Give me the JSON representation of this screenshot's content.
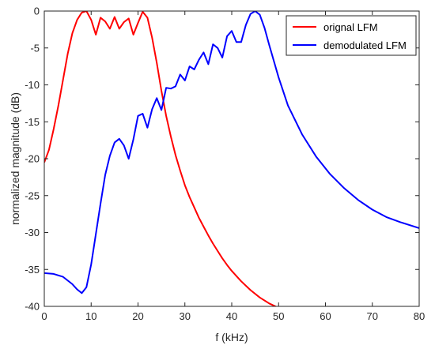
{
  "chart_data": {
    "type": "line",
    "title": "",
    "xlabel": "f (kHz)",
    "ylabel": "normalized magnitude (dB)",
    "xlim": [
      0,
      80
    ],
    "ylim": [
      -40,
      0
    ],
    "xticks": [
      "0",
      "10",
      "20",
      "30",
      "40",
      "50",
      "60",
      "70",
      "80"
    ],
    "yticks": [
      "0",
      "-5",
      "-10",
      "-15",
      "-20",
      "-25",
      "-30",
      "-35",
      "-40"
    ],
    "grid": false,
    "legend_position": "top-right",
    "series": [
      {
        "name": "orignal LFM",
        "color": "#ff0000",
        "x": [
          0,
          1,
          2,
          3,
          4,
          5,
          6,
          7,
          8,
          9,
          10,
          11,
          12,
          13,
          14,
          15,
          16,
          17,
          18,
          19,
          20,
          21,
          22,
          23,
          24,
          25,
          26,
          27,
          28,
          29,
          30,
          31,
          32,
          33,
          34,
          35,
          36,
          37,
          38,
          39,
          40,
          42,
          44,
          46,
          48,
          50,
          51
        ],
        "y": [
          -20.5,
          -18.8,
          -16,
          -12.8,
          -9.3,
          -5.8,
          -3,
          -1.2,
          -0.2,
          0,
          -1.2,
          -3.2,
          -0.9,
          -1.4,
          -2.4,
          -0.8,
          -2.4,
          -1.5,
          -1,
          -3.2,
          -1.6,
          -0.1,
          -0.9,
          -3.6,
          -7,
          -10.8,
          -14.2,
          -17,
          -19.5,
          -21.6,
          -23.6,
          -25.2,
          -26.6,
          -28,
          -29.2,
          -30.4,
          -31.5,
          -32.5,
          -33.5,
          -34.4,
          -35.2,
          -36.6,
          -37.8,
          -38.8,
          -39.6,
          -40.2,
          -40.5
        ]
      },
      {
        "name": "demodulated LFM",
        "color": "#0000ff",
        "x": [
          0,
          2,
          4,
          6,
          7,
          8,
          9,
          10,
          11,
          12,
          13,
          14,
          15,
          16,
          17,
          18,
          19,
          20,
          21,
          22,
          23,
          24,
          25,
          26,
          27,
          28,
          29,
          30,
          31,
          32,
          33,
          34,
          35,
          36,
          37,
          38,
          39,
          40,
          41,
          42,
          43,
          44,
          45,
          46,
          47,
          48,
          50,
          52,
          55,
          58,
          61,
          64,
          67,
          70,
          73,
          76,
          80
        ],
        "y": [
          -35.5,
          -35.6,
          -36,
          -37,
          -37.7,
          -38.2,
          -37.4,
          -34.3,
          -30.2,
          -26.1,
          -22.2,
          -19.6,
          -17.8,
          -17.3,
          -18.2,
          -20,
          -17.4,
          -14.2,
          -13.9,
          -15.8,
          -13.3,
          -11.8,
          -13.4,
          -10.4,
          -10.5,
          -10.2,
          -8.6,
          -9.4,
          -7.5,
          -7.9,
          -6.6,
          -5.6,
          -7.2,
          -4.5,
          -5,
          -6.3,
          -3.4,
          -2.7,
          -4.2,
          -4.2,
          -1.9,
          -0.4,
          0,
          -0.5,
          -2.3,
          -4.6,
          -9,
          -12.8,
          -16.7,
          -19.7,
          -22.1,
          -24,
          -25.6,
          -26.9,
          -27.9,
          -28.6,
          -29.4
        ]
      }
    ]
  }
}
